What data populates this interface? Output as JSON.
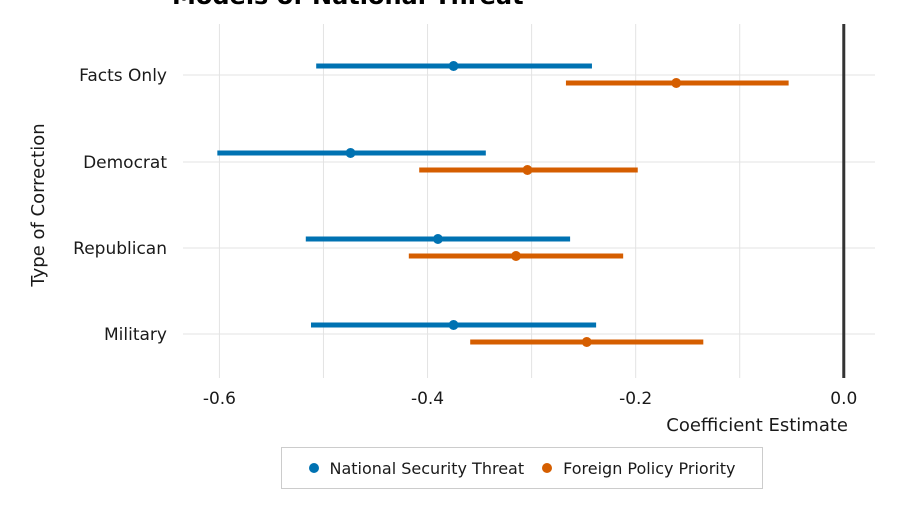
{
  "chart_data": {
    "type": "scatter",
    "title": "Models of National Threat",
    "xlabel": "Coefficient Estimate",
    "ylabel": "Type of Correction",
    "xlim": [
      -0.635,
      0.03
    ],
    "x_ticks": [
      "-0.6",
      "-0.4",
      "-0.2",
      "0.0"
    ],
    "categories": [
      "Facts Only",
      "Democrat",
      "Republican",
      "Military"
    ],
    "reference_line_x": 0.0,
    "grid": true,
    "legend_position": "bottom",
    "series": [
      {
        "name": "National Security Threat",
        "color": "#0072B2",
        "estimates": [
          -0.375,
          -0.474,
          -0.39,
          -0.375
        ],
        "lower": [
          -0.507,
          -0.602,
          -0.517,
          -0.512
        ],
        "upper": [
          -0.242,
          -0.344,
          -0.263,
          -0.238
        ]
      },
      {
        "name": "Foreign Policy Priority",
        "color": "#D55E00",
        "estimates": [
          -0.161,
          -0.304,
          -0.315,
          -0.247
        ],
        "lower": [
          -0.267,
          -0.408,
          -0.418,
          -0.359
        ],
        "upper": [
          -0.053,
          -0.198,
          -0.212,
          -0.135
        ]
      }
    ]
  }
}
